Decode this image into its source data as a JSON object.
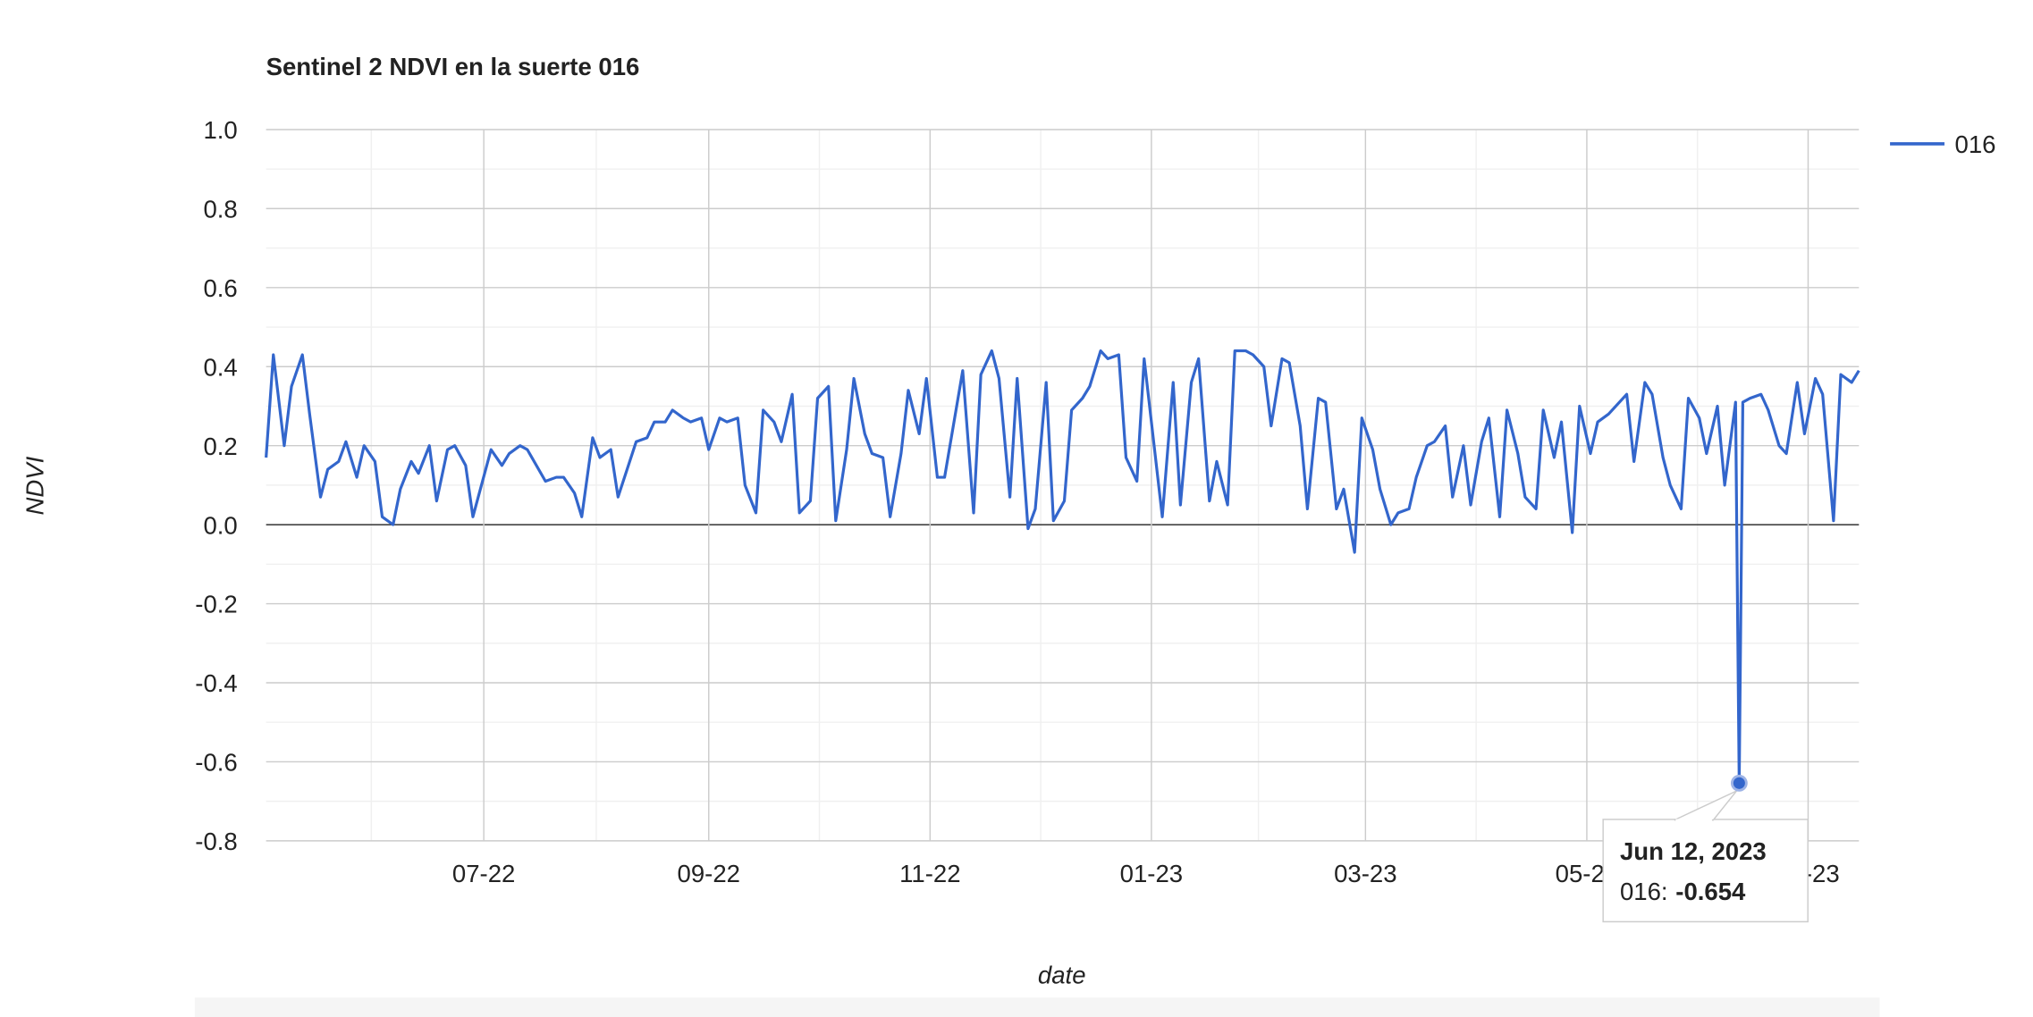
{
  "chart_data": {
    "type": "line",
    "title": "Sentinel 2 NDVI en la suerte 016",
    "x_label": "date",
    "y_label": "NDVI",
    "legend_position": "right",
    "grid": true,
    "xlim": [
      "2022-05-02",
      "2023-07-15"
    ],
    "xticks": [
      {
        "value": "2022-07-01",
        "label": "07-22"
      },
      {
        "value": "2022-09-01",
        "label": "09-22"
      },
      {
        "value": "2022-11-01",
        "label": "11-22"
      },
      {
        "value": "2023-01-01",
        "label": "01-23"
      },
      {
        "value": "2023-03-01",
        "label": "03-23"
      },
      {
        "value": "2023-05-01",
        "label": "05-23"
      },
      {
        "value": "2023-07-01",
        "label": "07-23"
      }
    ],
    "ylim": [
      -0.8,
      1
    ],
    "yticks": [
      {
        "value": 1,
        "label": "1.0"
      },
      0.8,
      0.6,
      0.4,
      0.2,
      {
        "value": 0,
        "label": "0.0"
      },
      -0.2,
      -0.4,
      -0.6,
      -0.8
    ],
    "x": [
      "2022-05-02",
      "2022-05-04",
      "2022-05-07",
      "2022-05-09",
      "2022-05-12",
      "2022-05-14",
      "2022-05-17",
      "2022-05-19",
      "2022-05-22",
      "2022-05-24",
      "2022-05-27",
      "2022-05-29",
      "2022-06-01",
      "2022-06-03",
      "2022-06-06",
      "2022-06-08",
      "2022-06-11",
      "2022-06-13",
      "2022-06-16",
      "2022-06-18",
      "2022-06-21",
      "2022-06-23",
      "2022-06-26",
      "2022-06-28",
      "2022-07-03",
      "2022-07-06",
      "2022-07-08",
      "2022-07-11",
      "2022-07-13",
      "2022-07-18",
      "2022-07-21",
      "2022-07-23",
      "2022-07-26",
      "2022-07-28",
      "2022-07-31",
      "2022-08-02",
      "2022-08-05",
      "2022-08-07",
      "2022-08-12",
      "2022-08-15",
      "2022-08-17",
      "2022-08-20",
      "2022-08-22",
      "2022-08-25",
      "2022-08-27",
      "2022-08-30",
      "2022-09-01",
      "2022-09-04",
      "2022-09-06",
      "2022-09-09",
      "2022-09-11",
      "2022-09-14",
      "2022-09-16",
      "2022-09-19",
      "2022-09-21",
      "2022-09-24",
      "2022-09-26",
      "2022-09-29",
      "2022-10-01",
      "2022-10-04",
      "2022-10-06",
      "2022-10-09",
      "2022-10-11",
      "2022-10-14",
      "2022-10-16",
      "2022-10-19",
      "2022-10-21",
      "2022-10-24",
      "2022-10-26",
      "2022-10-29",
      "2022-10-31",
      "2022-11-03",
      "2022-11-05",
      "2022-11-10",
      "2022-11-13",
      "2022-11-15",
      "2022-11-18",
      "2022-11-20",
      "2022-11-23",
      "2022-11-25",
      "2022-11-28",
      "2022-11-30",
      "2022-12-03",
      "2022-12-05",
      "2022-12-08",
      "2022-12-10",
      "2022-12-13",
      "2022-12-15",
      "2022-12-18",
      "2022-12-20",
      "2022-12-23",
      "2022-12-25",
      "2022-12-28",
      "2022-12-30",
      "2023-01-04",
      "2023-01-07",
      "2023-01-09",
      "2023-01-12",
      "2023-01-14",
      "2023-01-17",
      "2023-01-19",
      "2023-01-22",
      "2023-01-24",
      "2023-01-27",
      "2023-01-29",
      "2023-02-01",
      "2023-02-03",
      "2023-02-06",
      "2023-02-08",
      "2023-02-11",
      "2023-02-13",
      "2023-02-16",
      "2023-02-18",
      "2023-02-21",
      "2023-02-23",
      "2023-02-26",
      "2023-02-28",
      "2023-03-03",
      "2023-03-05",
      "2023-03-08",
      "2023-03-10",
      "2023-03-13",
      "2023-03-15",
      "2023-03-18",
      "2023-03-20",
      "2023-03-23",
      "2023-03-25",
      "2023-03-28",
      "2023-03-30",
      "2023-04-02",
      "2023-04-04",
      "2023-04-07",
      "2023-04-09",
      "2023-04-12",
      "2023-04-14",
      "2023-04-17",
      "2023-04-19",
      "2023-04-22",
      "2023-04-24",
      "2023-04-27",
      "2023-04-29",
      "2023-05-02",
      "2023-05-04",
      "2023-05-07",
      "2023-05-09",
      "2023-05-12",
      "2023-05-14",
      "2023-05-17",
      "2023-05-19",
      "2023-05-22",
      "2023-05-24",
      "2023-05-27",
      "2023-05-29",
      "2023-06-01",
      "2023-06-03",
      "2023-06-06",
      "2023-06-08",
      "2023-06-11",
      "2023-06-12",
      "2023-06-13",
      "2023-06-15",
      "2023-06-18",
      "2023-06-20",
      "2023-06-23",
      "2023-06-25",
      "2023-06-28",
      "2023-06-30",
      "2023-07-03",
      "2023-07-05",
      "2023-07-08",
      "2023-07-10",
      "2023-07-13",
      "2023-07-15"
    ],
    "series": [
      {
        "name": "016",
        "color": "#3366cc",
        "values": [
          0.17,
          0.43,
          0.2,
          0.35,
          0.43,
          0.28,
          0.07,
          0.14,
          0.16,
          0.21,
          0.12,
          0.2,
          0.16,
          0.02,
          0.0,
          0.09,
          0.16,
          0.13,
          0.2,
          0.06,
          0.19,
          0.2,
          0.15,
          0.02,
          0.19,
          0.15,
          0.18,
          0.2,
          0.19,
          0.11,
          0.12,
          0.12,
          0.08,
          0.02,
          0.22,
          0.17,
          0.19,
          0.07,
          0.21,
          0.22,
          0.26,
          0.26,
          0.29,
          0.27,
          0.26,
          0.27,
          0.19,
          0.27,
          0.26,
          0.27,
          0.1,
          0.03,
          0.29,
          0.26,
          0.21,
          0.33,
          0.03,
          0.06,
          0.32,
          0.35,
          0.01,
          0.19,
          0.37,
          0.23,
          0.18,
          0.17,
          0.02,
          0.18,
          0.34,
          0.23,
          0.37,
          0.12,
          0.12,
          0.39,
          0.03,
          0.38,
          0.44,
          0.37,
          0.07,
          0.37,
          -0.01,
          0.04,
          0.36,
          0.01,
          0.06,
          0.29,
          0.32,
          0.35,
          0.44,
          0.42,
          0.43,
          0.17,
          0.11,
          0.42,
          0.02,
          0.36,
          0.05,
          0.36,
          0.42,
          0.06,
          0.16,
          0.05,
          0.44,
          0.44,
          0.43,
          0.4,
          0.25,
          0.42,
          0.41,
          0.25,
          0.04,
          0.32,
          0.31,
          0.04,
          0.09,
          -0.07,
          0.27,
          0.19,
          0.09,
          0.0,
          0.03,
          0.04,
          0.12,
          0.2,
          0.21,
          0.25,
          0.07,
          0.2,
          0.05,
          0.21,
          0.27,
          0.02,
          0.29,
          0.18,
          0.07,
          0.04,
          0.29,
          0.17,
          0.26,
          -0.02,
          0.3,
          0.18,
          0.26,
          0.28,
          0.3,
          0.33,
          0.16,
          0.36,
          0.33,
          0.17,
          0.1,
          0.04,
          0.32,
          0.27,
          0.18,
          0.3,
          0.1,
          0.31,
          -0.654,
          0.31,
          0.32,
          0.33,
          0.29,
          0.2,
          0.18,
          0.36,
          0.23,
          0.37,
          0.33,
          0.01,
          0.38,
          0.36,
          0.39
        ]
      }
    ],
    "tooltip": {
      "date": "Jun 12, 2023",
      "label": "016:",
      "value_label": "-0.654"
    }
  }
}
